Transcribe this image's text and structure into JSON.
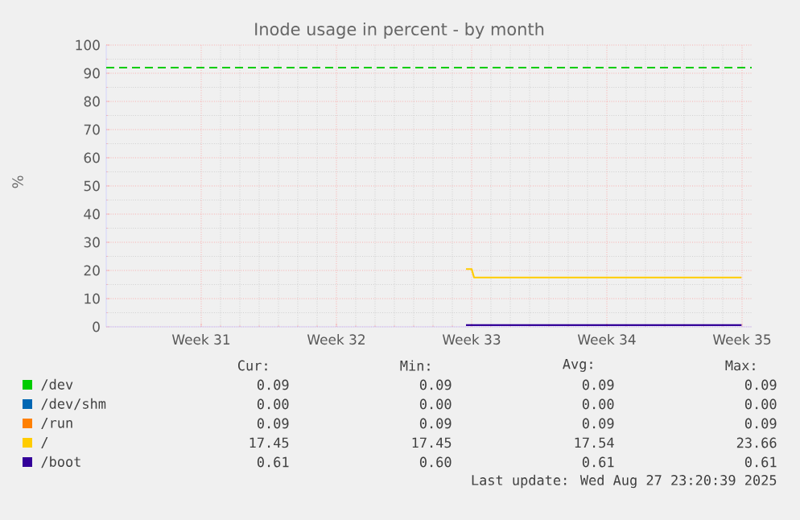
{
  "chart_data": {
    "type": "line",
    "title": "Inode usage in percent - by month",
    "ylabel": "%",
    "xlim": [
      "2025-07-26T02:00",
      "2025-08-28T12:00"
    ],
    "ylim": [
      0,
      100
    ],
    "xticks": [
      {
        "value": "2025-07-31",
        "label": "Week 31"
      },
      {
        "value": "2025-08-07",
        "label": "Week 32"
      },
      {
        "value": "2025-08-14",
        "label": "Week 33"
      },
      {
        "value": "2025-08-21",
        "label": "Week 34"
      },
      {
        "value": "2025-08-28",
        "label": "Week 35"
      }
    ],
    "yticks": [
      0,
      10,
      20,
      30,
      40,
      50,
      60,
      70,
      80,
      90,
      100
    ],
    "grid": true,
    "legend": "bottom",
    "series": [
      {
        "name": "/dev",
        "color": "#00cc00"
      },
      {
        "name": "/dev/shm",
        "color": "#0066b3"
      },
      {
        "name": "/run",
        "color": "#ff8000"
      },
      {
        "name": "/",
        "color": "#ffcc00",
        "x": [
          "2025-08-13T17:00",
          "2025-08-14T00:00",
          "2025-08-14T03:00",
          "2025-08-27T23:20"
        ],
        "values": [
          20.5,
          20.5,
          17.5,
          17.5
        ]
      },
      {
        "name": "/boot",
        "color": "#330099",
        "x": [
          "2025-08-13T17:00",
          "2025-08-27T23:20"
        ],
        "values": [
          0.6,
          0.6
        ]
      }
    ],
    "ref_lines": [
      {
        "axis": "y",
        "value": 92,
        "color": "#00cc00",
        "line_style": "dashed"
      }
    ],
    "annotations": [
      "Cur:",
      "Min:",
      "Avg:",
      "Max:",
      "0.09",
      "0.09",
      "0.09",
      "0.09",
      "0.00",
      "0.00",
      "0.00",
      "0.00",
      "0.09",
      "0.09",
      "0.09",
      "0.09",
      "17.45",
      "17.45",
      "17.54",
      "23.66",
      "0.61",
      "0.60",
      "0.61",
      "0.61",
      "Last update: Wed Aug 27 23:20:39 2025"
    ]
  }
}
